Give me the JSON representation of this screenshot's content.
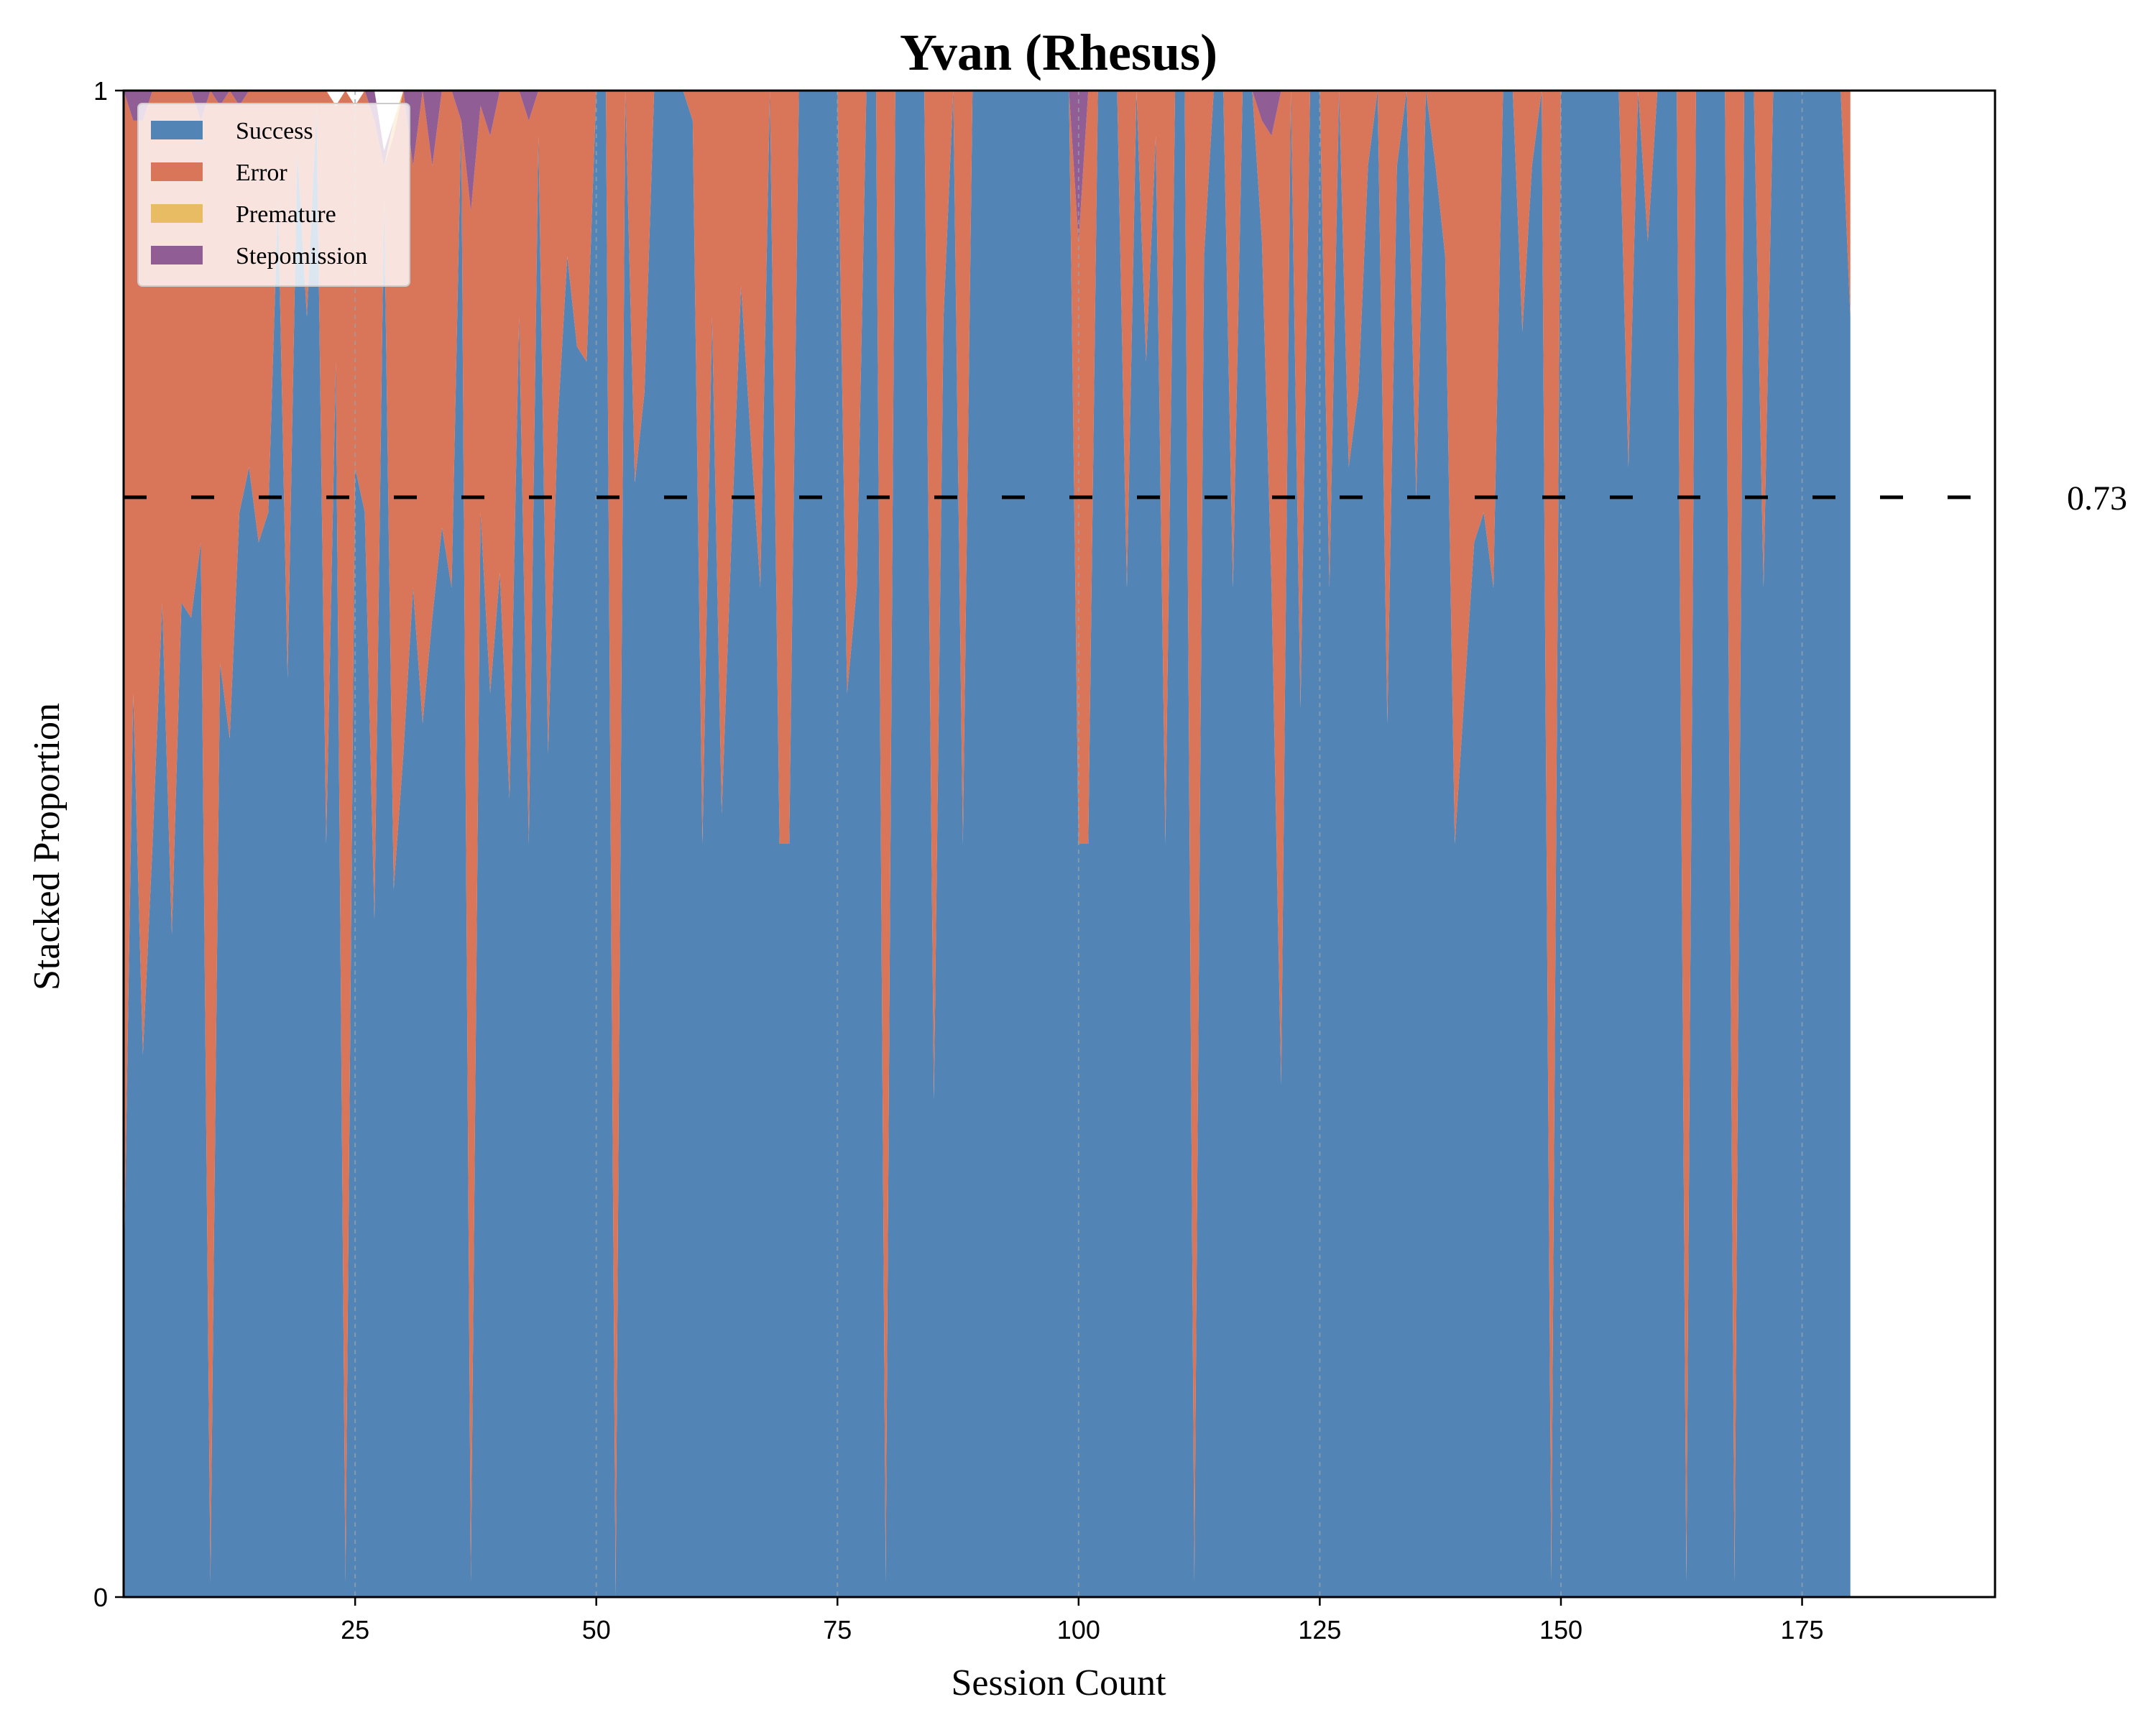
{
  "chart_data": {
    "type": "area",
    "title": "Yvan (Rhesus)",
    "xlabel": "Session Count",
    "ylabel": "Stacked Proportion",
    "xlim": [
      1,
      195
    ],
    "ylim": [
      0,
      1
    ],
    "xticks": [
      25,
      50,
      75,
      100,
      125,
      150,
      175
    ],
    "yticks": [
      0,
      1
    ],
    "grid": "vertical dashed",
    "legend_position": "top-left",
    "reference_line": {
      "value": 0.73,
      "label": "0.73",
      "style": "dashed",
      "color": "#000000"
    },
    "series": [
      {
        "name": "Success",
        "color": "#5284b5",
        "values": [
          0.2,
          0.6,
          0.36,
          0.5,
          0.66,
          0.44,
          0.66,
          0.65,
          0.7,
          0.01,
          0.62,
          0.57,
          0.72,
          0.75,
          0.7,
          0.72,
          0.93,
          0.61,
          0.96,
          0.85,
          0.99,
          0.5,
          0.82,
          0.01,
          0.75,
          0.72,
          0.45,
          0.93,
          0.47,
          0.56,
          0.67,
          0.58,
          0.65,
          0.71,
          0.67,
          0.98,
          0.01,
          0.72,
          0.6,
          0.68,
          0.53,
          0.85,
          0.5,
          0.97,
          0.56,
          0.78,
          0.89,
          0.83,
          0.82,
          1.0,
          1.0,
          0.0,
          1.0,
          0.74,
          0.8,
          1.0,
          1.0,
          1.0,
          1.0,
          0.98,
          0.5,
          0.85,
          0.52,
          0.7,
          0.87,
          0.77,
          0.67,
          1.0,
          0.5,
          0.5,
          1.0,
          1.0,
          1.0,
          1.0,
          1.0,
          0.6,
          0.67,
          1.0,
          1.0,
          0.01,
          1.0,
          1.0,
          1.0,
          1.0,
          0.33,
          0.85,
          1.0,
          0.5,
          1.0,
          1.0,
          1.0,
          1.0,
          1.0,
          1.0,
          1.0,
          1.0,
          1.0,
          1.0,
          1.0,
          0.5,
          0.5,
          1.0,
          1.0,
          1.0,
          0.67,
          1.0,
          0.82,
          0.97,
          0.5,
          1.0,
          1.0,
          0.01,
          0.89,
          1.0,
          1.0,
          0.67,
          1.0,
          1.0,
          0.9,
          0.67,
          0.34,
          1.0,
          0.59,
          1.0,
          1.0,
          0.67,
          1.0,
          0.75,
          0.8,
          0.95,
          1.0,
          0.58,
          0.95,
          1.0,
          0.73,
          1.0,
          0.95,
          0.89,
          0.5,
          0.6,
          0.7,
          0.72,
          0.67,
          1.0,
          1.0,
          0.84,
          0.95,
          1.0,
          0.01,
          1.0,
          1.0,
          1.0,
          1.0,
          1.0,
          1.0,
          1.0,
          0.75,
          1.0,
          0.9,
          1.0,
          1.0,
          1.0,
          0.01,
          1.0,
          1.0,
          1.0,
          1.0,
          0.01,
          1.0,
          1.0,
          0.67,
          1.0,
          1.0,
          1.0,
          1.0,
          1.0,
          1.0,
          1.0,
          1.0,
          0.85
        ]
      },
      {
        "name": "Error",
        "color": "#d97559",
        "values": [
          0.8,
          0.38,
          0.62,
          0.5,
          0.34,
          0.56,
          0.34,
          0.35,
          0.28,
          0.99,
          0.37,
          0.43,
          0.27,
          0.25,
          0.3,
          0.28,
          0.07,
          0.39,
          0.04,
          0.15,
          0.01,
          0.5,
          0.17,
          0.99,
          0.24,
          0.28,
          0.53,
          0.02,
          0.5,
          0.44,
          0.28,
          0.42,
          0.3,
          0.29,
          0.33,
          0.0,
          0.91,
          0.27,
          0.37,
          0.32,
          0.47,
          0.15,
          0.48,
          0.03,
          0.44,
          0.22,
          0.11,
          0.17,
          0.18,
          0.0,
          0.0,
          1.0,
          0.0,
          0.26,
          0.2,
          0.0,
          0.0,
          0.0,
          0.0,
          0.02,
          0.5,
          0.15,
          0.48,
          0.3,
          0.13,
          0.23,
          0.33,
          0.0,
          0.5,
          0.5,
          0.0,
          0.0,
          0.0,
          0.0,
          0.0,
          0.4,
          0.33,
          0.0,
          0.0,
          0.99,
          0.0,
          0.0,
          0.0,
          0.0,
          0.67,
          0.15,
          0.0,
          0.5,
          0.0,
          0.0,
          0.0,
          0.0,
          0.0,
          0.0,
          0.0,
          0.0,
          0.0,
          0.0,
          0.0,
          0.4,
          0.5,
          0.0,
          0.0,
          0.0,
          0.33,
          0.0,
          0.18,
          0.03,
          0.5,
          0.0,
          0.0,
          0.99,
          0.11,
          0.0,
          0.0,
          0.33,
          0.0,
          0.0,
          0.08,
          0.3,
          0.66,
          0.0,
          0.41,
          0.0,
          0.0,
          0.33,
          0.0,
          0.25,
          0.2,
          0.05,
          0.0,
          0.42,
          0.05,
          0.0,
          0.27,
          0.0,
          0.05,
          0.11,
          0.5,
          0.4,
          0.3,
          0.28,
          0.33,
          0.0,
          0.0,
          0.16,
          0.05,
          0.0,
          0.99,
          0.0,
          0.0,
          0.0,
          0.0,
          0.0,
          0.0,
          0.0,
          0.25,
          0.0,
          0.1,
          0.0,
          0.0,
          0.0,
          0.99,
          0.0,
          0.0,
          0.0,
          0.0,
          0.99,
          0.0,
          0.0,
          0.33,
          0.0,
          0.0,
          0.0,
          0.0,
          0.0,
          0.0,
          0.0,
          0.0,
          0.15
        ]
      },
      {
        "name": "Premature",
        "color": "#e8bc62",
        "values": [
          0,
          0,
          0,
          0,
          0,
          0,
          0,
          0,
          0,
          0,
          0,
          0,
          0,
          0,
          0,
          0,
          0,
          0,
          0,
          0,
          0,
          0,
          0,
          0,
          0,
          0,
          0,
          0,
          0.01,
          0,
          0,
          0,
          0,
          0,
          0,
          0,
          0,
          0,
          0,
          0,
          0,
          0.02,
          0,
          0,
          0,
          0,
          0,
          0,
          0,
          0,
          0,
          0,
          0,
          0,
          0,
          0,
          0,
          0,
          0,
          0,
          0,
          0,
          0,
          0,
          0,
          0,
          0,
          0,
          0,
          0,
          0,
          0,
          0,
          0,
          0,
          0,
          0,
          0,
          0,
          0,
          0,
          0,
          0,
          0,
          0,
          0,
          0,
          0,
          0,
          0,
          0,
          0,
          0,
          0,
          0,
          0,
          0,
          0,
          0,
          0,
          0,
          0,
          0,
          0,
          0,
          0,
          0,
          0,
          0,
          0,
          0,
          0,
          0,
          0,
          0,
          0,
          0,
          0,
          0,
          0,
          0,
          0,
          0,
          0,
          0,
          0,
          0,
          0,
          0,
          0,
          0,
          0,
          0,
          0,
          0,
          0,
          0,
          0,
          0,
          0,
          0,
          0,
          0,
          0,
          0,
          0,
          0,
          0,
          0,
          0,
          0,
          0,
          0,
          0,
          0,
          0,
          0,
          0,
          0,
          0,
          0,
          0,
          0,
          0,
          0,
          0,
          0,
          0,
          0,
          0,
          0,
          0,
          0,
          0,
          0,
          0,
          0,
          0,
          0,
          0,
          0,
          0,
          0,
          0,
          0,
          0,
          0,
          0,
          0,
          0,
          0,
          0
        ]
      },
      {
        "name": "Stepomission",
        "color": "#905d95",
        "values": [
          0,
          0.02,
          0.02,
          0,
          0,
          0,
          0,
          0,
          0.02,
          0,
          0.01,
          0,
          0.01,
          0,
          0,
          0,
          0,
          0,
          0,
          0,
          0,
          0,
          0,
          0,
          0,
          0,
          0.02,
          0.01,
          0,
          0,
          0.05,
          0,
          0.05,
          0,
          0,
          0.02,
          0.09,
          0.01,
          0.03,
          0,
          0,
          0,
          0.02,
          0,
          0,
          0,
          0,
          0,
          0,
          0,
          0,
          0,
          0,
          0,
          0,
          0,
          0,
          0,
          0,
          0,
          0,
          0,
          0,
          0,
          0,
          0,
          0,
          0,
          0,
          0,
          0,
          0,
          0,
          0,
          0,
          0,
          0,
          0,
          0,
          0,
          0,
          0,
          0,
          0,
          0,
          0,
          0,
          0,
          0,
          0,
          0,
          0,
          0,
          0,
          0,
          0,
          0,
          0,
          0,
          0.1,
          0,
          0,
          0,
          0,
          0,
          0,
          0,
          0,
          0,
          0,
          0,
          0,
          0,
          0,
          0,
          0,
          0,
          0,
          0.02,
          0.03,
          0,
          0,
          0,
          0,
          0,
          0,
          0,
          0,
          0,
          0,
          0,
          0,
          0,
          0,
          0,
          0,
          0,
          0,
          0,
          0,
          0,
          0,
          0,
          0,
          0,
          0,
          0,
          0,
          0,
          0,
          0,
          0,
          0,
          0,
          0,
          0,
          0,
          0,
          0,
          0,
          0,
          0,
          0,
          0,
          0,
          0,
          0,
          0,
          0,
          0,
          0,
          0,
          0,
          0,
          0,
          0,
          0,
          0,
          0,
          0,
          0,
          0.03,
          0,
          0,
          0,
          0,
          0,
          0,
          0
        ]
      }
    ]
  }
}
